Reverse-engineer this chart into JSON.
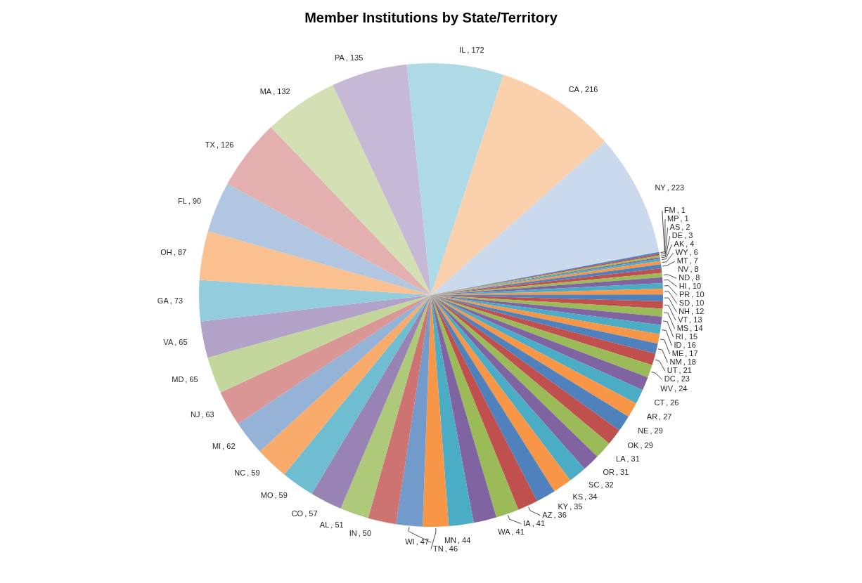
{
  "chart_data": {
    "type": "pie",
    "title": "Member Institutions by State/Territory",
    "categories": [
      "FM",
      "MP",
      "AS",
      "DE",
      "AK",
      "WY",
      "MT",
      "NV",
      "ND",
      "HI",
      "PR",
      "SD",
      "NH",
      "VT",
      "MS",
      "RI",
      "ID",
      "ME",
      "NM",
      "UT",
      "DC",
      "WV",
      "CT",
      "AR",
      "NE",
      "OK",
      "LA",
      "OR",
      "SC",
      "KS",
      "KY",
      "AZ",
      "IA",
      "WA",
      "MN",
      "TN",
      "WI",
      "IN",
      "AL",
      "CO",
      "MO",
      "NC",
      "MI",
      "NJ",
      "MD",
      "VA",
      "GA",
      "OH",
      "FL",
      "TX",
      "MA",
      "PA",
      "IL",
      "CA",
      "NY"
    ],
    "values": [
      1,
      1,
      2,
      3,
      4,
      6,
      7,
      8,
      8,
      10,
      10,
      10,
      12,
      13,
      14,
      15,
      16,
      17,
      18,
      21,
      23,
      24,
      26,
      27,
      29,
      29,
      31,
      31,
      32,
      34,
      35,
      36,
      41,
      41,
      44,
      46,
      47,
      50,
      51,
      57,
      59,
      59,
      62,
      63,
      65,
      65,
      73,
      87,
      90,
      126,
      132,
      135,
      172,
      216,
      223
    ],
    "value_labels": [
      ", 1",
      ", 1",
      ", 2",
      ", 3",
      ", 4",
      ", 6",
      ", 7",
      ", 8",
      ", 8",
      ", 10",
      ", 10",
      ", 10",
      ", 12",
      ", 13",
      ", 14",
      ", 15",
      ", 16",
      ", 17",
      ", 18",
      ", 21",
      ", 23",
      ", 24",
      ", 26",
      ", 27",
      ", 29",
      ", 29",
      ", 31",
      ", 31",
      ", 32",
      ", 34",
      ", 35",
      ", 36",
      ", 41",
      ", 41",
      ", 44",
      ", 46",
      ", 47",
      ", 50",
      ", 51",
      ", 57",
      ", 59",
      ", 59",
      ", 62",
      ", 63",
      ", 65",
      ", 65",
      ", 73",
      ", 87",
      ", 90",
      ", 126",
      ", 132",
      ", 135",
      ", 172",
      ", 216",
      ", 223"
    ],
    "colors": [
      "#4f81bd",
      "#c0504d",
      "#9bbb59",
      "#8064a2",
      "#4bacc6",
      "#f79646",
      "#4f81bd",
      "#c0504d",
      "#9bbb59",
      "#8064a2",
      "#4bacc6",
      "#f79646",
      "#4f81bd",
      "#c0504d",
      "#9bbb59",
      "#8064a2",
      "#4bacc6",
      "#f79646",
      "#4f81bd",
      "#c0504d",
      "#9bbb59",
      "#8064a2",
      "#4bacc6",
      "#f79646",
      "#4f81bd",
      "#c0504d",
      "#9bbb59",
      "#8064a2",
      "#4bacc6",
      "#f79646",
      "#4f81bd",
      "#c0504d",
      "#9bbb59",
      "#8064a2",
      "#4bacc6",
      "#f79646",
      "#729aca",
      "#cd7371",
      "#afc97a",
      "#9983b5",
      "#6fbdd1",
      "#f9ab6b",
      "#95b3d7",
      "#d99694",
      "#c3d69b",
      "#b3a2c7",
      "#93cddd",
      "#fac090",
      "#b0c6e1",
      "#e3b0af",
      "#d2e0b4",
      "#c6b9d5",
      "#aedae5",
      "#fbd0ac",
      "#cad9eb"
    ]
  }
}
